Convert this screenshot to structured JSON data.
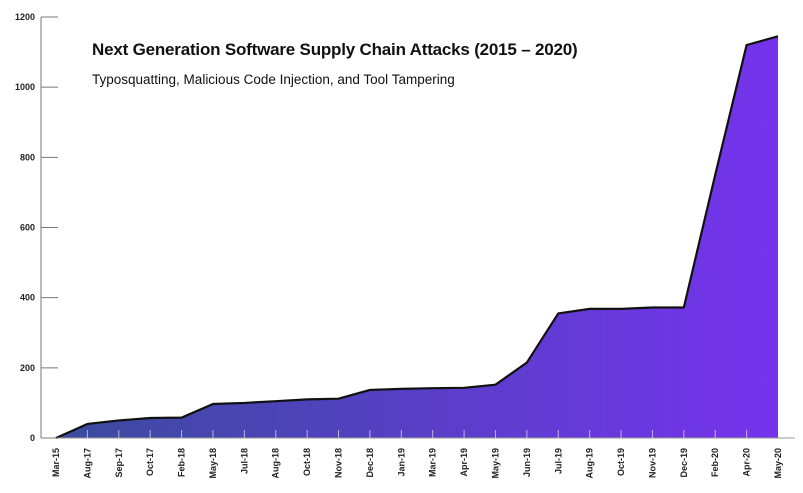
{
  "chart_data": {
    "type": "area",
    "title": "Next Generation Software Supply Chain Attacks (2015 – 2020)",
    "subtitle": "Typosquatting, Malicious Code Injection, and Tool Tampering",
    "xlabel": "",
    "ylabel": "",
    "ylim": [
      0,
      1200
    ],
    "yticks": [
      0,
      200,
      400,
      600,
      800,
      1000,
      1200
    ],
    "categories": [
      "Mar-15",
      "Aug-17",
      "Sep-17",
      "Oct-17",
      "Feb-18",
      "May-18",
      "Jul-18",
      "Aug-18",
      "Oct-18",
      "Nov-18",
      "Dec-18",
      "Jan-19",
      "Mar-19",
      "Apr-19",
      "May-19",
      "Jun-19",
      "Jul-19",
      "Aug-19",
      "Oct-19",
      "Nov-19",
      "Dec-19",
      "Feb-20",
      "Apr-20",
      "May-20"
    ],
    "values": [
      0,
      40,
      50,
      57,
      58,
      97,
      100,
      105,
      110,
      112,
      137,
      140,
      142,
      143,
      152,
      215,
      355,
      368,
      368,
      372,
      372,
      750,
      1120,
      1145
    ],
    "grid": false,
    "colors": {
      "fill_start": "#3a4b9e",
      "fill_end": "#7633ee",
      "line": "#111111"
    }
  }
}
